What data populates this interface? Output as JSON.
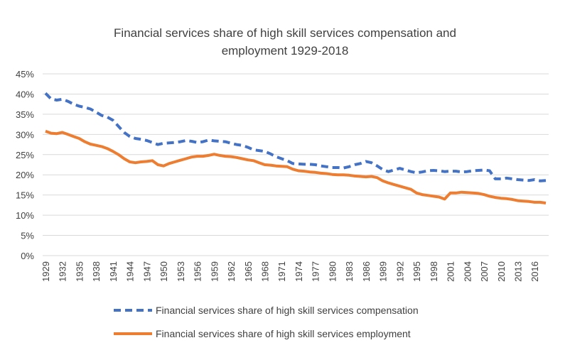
{
  "chart_data": {
    "type": "line",
    "title_line1": "Financial services share of high skill  services compensation and",
    "title_line2": "employment 1929-2018",
    "xlabel": "",
    "ylabel": "",
    "ylim": [
      0,
      0.45
    ],
    "yticks": [
      "0%",
      "5%",
      "10%",
      "15%",
      "20%",
      "25%",
      "30%",
      "35%",
      "40%",
      "45%"
    ],
    "xticks": [
      "1929",
      "1932",
      "1935",
      "1938",
      "1941",
      "1944",
      "1947",
      "1950",
      "1953",
      "1956",
      "1959",
      "1962",
      "1965",
      "1968",
      "1971",
      "1974",
      "1977",
      "1980",
      "1983",
      "1986",
      "1989",
      "1992",
      "1995",
      "1998",
      "2001",
      "2004",
      "2007",
      "2010",
      "2013",
      "2016"
    ],
    "grid": true,
    "legend_position": "bottom",
    "x": [
      1929,
      1930,
      1931,
      1932,
      1933,
      1934,
      1935,
      1936,
      1937,
      1938,
      1939,
      1940,
      1941,
      1942,
      1943,
      1944,
      1945,
      1946,
      1947,
      1948,
      1949,
      1950,
      1951,
      1952,
      1953,
      1954,
      1955,
      1956,
      1957,
      1958,
      1959,
      1960,
      1961,
      1962,
      1963,
      1964,
      1965,
      1966,
      1967,
      1968,
      1969,
      1970,
      1971,
      1972,
      1973,
      1974,
      1975,
      1976,
      1977,
      1978,
      1979,
      1980,
      1981,
      1982,
      1983,
      1984,
      1985,
      1986,
      1987,
      1988,
      1989,
      1990,
      1991,
      1992,
      1993,
      1994,
      1995,
      1996,
      1997,
      1998,
      1999,
      2000,
      2001,
      2002,
      2003,
      2004,
      2005,
      2006,
      2007,
      2008,
      2009,
      2010,
      2011,
      2012,
      2013,
      2014,
      2015,
      2016,
      2017,
      2018
    ],
    "series": [
      {
        "name": "Financial services share of high skill services compensation",
        "color": "#4472c4",
        "style": "dashed",
        "values": [
          0.402,
          0.388,
          0.385,
          0.387,
          0.382,
          0.375,
          0.37,
          0.367,
          0.363,
          0.355,
          0.347,
          0.343,
          0.335,
          0.32,
          0.305,
          0.295,
          0.29,
          0.288,
          0.285,
          0.28,
          0.275,
          0.278,
          0.279,
          0.28,
          0.282,
          0.285,
          0.283,
          0.28,
          0.282,
          0.286,
          0.284,
          0.283,
          0.282,
          0.278,
          0.275,
          0.273,
          0.268,
          0.262,
          0.26,
          0.258,
          0.252,
          0.245,
          0.24,
          0.235,
          0.228,
          0.227,
          0.226,
          0.226,
          0.225,
          0.222,
          0.22,
          0.218,
          0.218,
          0.217,
          0.22,
          0.225,
          0.228,
          0.233,
          0.23,
          0.222,
          0.213,
          0.208,
          0.212,
          0.216,
          0.212,
          0.208,
          0.205,
          0.207,
          0.21,
          0.211,
          0.21,
          0.208,
          0.209,
          0.209,
          0.207,
          0.208,
          0.21,
          0.211,
          0.212,
          0.21,
          0.19,
          0.19,
          0.192,
          0.19,
          0.188,
          0.187,
          0.186,
          0.188,
          0.185,
          0.186
        ]
      },
      {
        "name": "Financial services share of high skill services employment",
        "color": "#ed7d31",
        "style": "solid",
        "values": [
          0.308,
          0.303,
          0.302,
          0.305,
          0.3,
          0.295,
          0.29,
          0.282,
          0.276,
          0.273,
          0.27,
          0.265,
          0.258,
          0.25,
          0.24,
          0.232,
          0.23,
          0.232,
          0.233,
          0.235,
          0.225,
          0.222,
          0.228,
          0.232,
          0.236,
          0.24,
          0.244,
          0.246,
          0.246,
          0.248,
          0.251,
          0.248,
          0.246,
          0.245,
          0.243,
          0.24,
          0.237,
          0.235,
          0.23,
          0.225,
          0.224,
          0.222,
          0.221,
          0.22,
          0.214,
          0.21,
          0.209,
          0.207,
          0.206,
          0.204,
          0.203,
          0.201,
          0.2,
          0.2,
          0.199,
          0.197,
          0.196,
          0.195,
          0.196,
          0.193,
          0.185,
          0.18,
          0.176,
          0.172,
          0.168,
          0.164,
          0.155,
          0.151,
          0.149,
          0.147,
          0.145,
          0.14,
          0.155,
          0.155,
          0.157,
          0.156,
          0.155,
          0.154,
          0.151,
          0.147,
          0.144,
          0.142,
          0.141,
          0.139,
          0.136,
          0.135,
          0.134,
          0.132,
          0.132,
          0.13
        ]
      }
    ]
  }
}
